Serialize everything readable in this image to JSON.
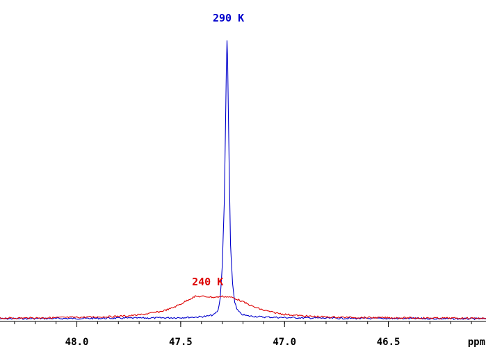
{
  "chart_data": {
    "type": "line",
    "xlabel": "ppm",
    "x_reversed": true,
    "xlim": [
      48.37,
      46.03
    ],
    "ylim": [
      0,
      1.0
    ],
    "grid": false,
    "legend": "none",
    "x_ticks": [
      {
        "value": 48.0,
        "label": "48.0"
      },
      {
        "value": 47.5,
        "label": "47.5"
      },
      {
        "value": 47.0,
        "label": "47.0"
      },
      {
        "value": 46.5,
        "label": "46.5"
      }
    ],
    "series": [
      {
        "name": "290 K",
        "color": "#0000cc",
        "label_at": {
          "x": 47.27,
          "y": 1.012
        },
        "points": [
          [
            48.37,
            0.002
          ],
          [
            48.2,
            0.003
          ],
          [
            48.0,
            0.003
          ],
          [
            47.8,
            0.004
          ],
          [
            47.6,
            0.005
          ],
          [
            47.5,
            0.006
          ],
          [
            47.42,
            0.008
          ],
          [
            47.37,
            0.011
          ],
          [
            47.34,
            0.016
          ],
          [
            47.32,
            0.03
          ],
          [
            47.31,
            0.07
          ],
          [
            47.3,
            0.18
          ],
          [
            47.29,
            0.4
          ],
          [
            47.285,
            0.62
          ],
          [
            47.28,
            0.86
          ],
          [
            47.277,
            0.945
          ],
          [
            47.274,
            0.88
          ],
          [
            47.27,
            0.68
          ],
          [
            47.265,
            0.45
          ],
          [
            47.26,
            0.25
          ],
          [
            47.25,
            0.12
          ],
          [
            47.24,
            0.06
          ],
          [
            47.23,
            0.035
          ],
          [
            47.21,
            0.018
          ],
          [
            47.18,
            0.012
          ],
          [
            47.1,
            0.008
          ],
          [
            47.0,
            0.006
          ],
          [
            46.8,
            0.004
          ],
          [
            46.6,
            0.003
          ],
          [
            46.4,
            0.003
          ],
          [
            46.2,
            0.002
          ],
          [
            46.03,
            0.002
          ]
        ]
      },
      {
        "name": "240 K",
        "color": "#dd0000",
        "label_at": {
          "x": 47.37,
          "y": 0.115
        },
        "points": [
          [
            48.37,
            0.004
          ],
          [
            48.2,
            0.005
          ],
          [
            48.0,
            0.007
          ],
          [
            47.85,
            0.009
          ],
          [
            47.75,
            0.012
          ],
          [
            47.68,
            0.017
          ],
          [
            47.6,
            0.026
          ],
          [
            47.55,
            0.036
          ],
          [
            47.5,
            0.052
          ],
          [
            47.46,
            0.068
          ],
          [
            47.43,
            0.078
          ],
          [
            47.4,
            0.078
          ],
          [
            47.37,
            0.077
          ],
          [
            47.34,
            0.075
          ],
          [
            47.32,
            0.076
          ],
          [
            47.3,
            0.078
          ],
          [
            47.28,
            0.077
          ],
          [
            47.25,
            0.074
          ],
          [
            47.22,
            0.066
          ],
          [
            47.19,
            0.056
          ],
          [
            47.15,
            0.043
          ],
          [
            47.1,
            0.031
          ],
          [
            47.05,
            0.023
          ],
          [
            47.0,
            0.017
          ],
          [
            46.9,
            0.011
          ],
          [
            46.8,
            0.008
          ],
          [
            46.6,
            0.006
          ],
          [
            46.4,
            0.005
          ],
          [
            46.2,
            0.004
          ],
          [
            46.03,
            0.004
          ]
        ]
      }
    ]
  }
}
